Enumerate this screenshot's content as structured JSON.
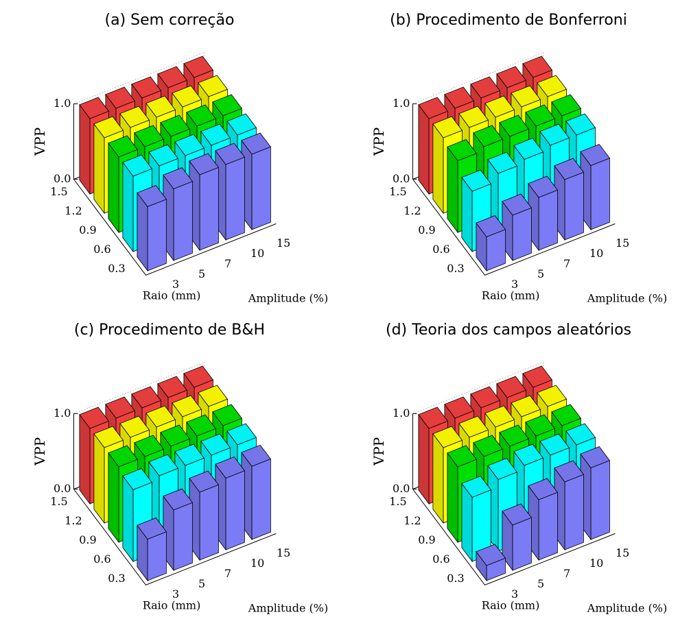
{
  "chart_data": [
    {
      "type": "bar3d",
      "title": "(a) Sem correção",
      "zlabel": "VPP",
      "xlabel": "Raio (mm)",
      "ylabel": "Amplitude (%)",
      "categories": [
        "3",
        "5",
        "7",
        "10",
        "15"
      ],
      "zlim": [
        0,
        1
      ],
      "zticks": [
        {
          "value": 0,
          "label": "0.0"
        },
        {
          "value": 1,
          "label": "1.0"
        }
      ],
      "series": [
        {
          "name": "0.3",
          "color": "#7b7bf5",
          "values": [
            0.85,
            0.95,
            1.0,
            1.0,
            1.0
          ]
        },
        {
          "name": "0.6",
          "color": "#00ffff",
          "values": [
            1.0,
            1.0,
            1.0,
            1.0,
            1.0
          ]
        },
        {
          "name": "0.9",
          "color": "#00e000",
          "values": [
            1.0,
            1.0,
            1.0,
            1.0,
            1.0
          ]
        },
        {
          "name": "1.2",
          "color": "#ffff00",
          "values": [
            1.0,
            1.0,
            1.0,
            1.0,
            1.0
          ]
        },
        {
          "name": "1.5",
          "color": "#f04040",
          "values": [
            1.0,
            1.0,
            1.0,
            1.0,
            1.0
          ]
        }
      ]
    },
    {
      "type": "bar3d",
      "title": "(b) Procedimento de Bonferroni",
      "zlabel": "VPP",
      "xlabel": "Raio (mm)",
      "ylabel": "Amplitude (%)",
      "categories": [
        "3",
        "5",
        "7",
        "10",
        "15"
      ],
      "zlim": [
        0,
        1
      ],
      "zticks": [
        {
          "value": 0,
          "label": "0.0"
        },
        {
          "value": 1,
          "label": "1.0"
        }
      ],
      "series": [
        {
          "name": "0.3",
          "color": "#7b7bf5",
          "values": [
            0.45,
            0.6,
            0.7,
            0.8,
            0.85
          ]
        },
        {
          "name": "0.6",
          "color": "#00ffff",
          "values": [
            0.8,
            0.9,
            0.95,
            1.0,
            1.0
          ]
        },
        {
          "name": "0.9",
          "color": "#00e000",
          "values": [
            0.95,
            1.0,
            1.0,
            1.0,
            1.0
          ]
        },
        {
          "name": "1.2",
          "color": "#ffff00",
          "values": [
            1.0,
            1.0,
            1.0,
            1.0,
            1.0
          ]
        },
        {
          "name": "1.5",
          "color": "#f04040",
          "values": [
            1.0,
            1.0,
            1.0,
            1.0,
            1.0
          ]
        }
      ]
    },
    {
      "type": "bar3d",
      "title": "(c) Procedimento de B&H",
      "zlabel": "VPP",
      "xlabel": "Raio (mm)",
      "ylabel": "Amplitude (%)",
      "categories": [
        "3",
        "5",
        "7",
        "10",
        "15"
      ],
      "zlim": [
        0,
        1
      ],
      "zticks": [
        {
          "value": 0,
          "label": "0.0"
        },
        {
          "value": 1,
          "label": "1.0"
        }
      ],
      "series": [
        {
          "name": "0.3",
          "color": "#7b7bf5",
          "values": [
            0.55,
            0.8,
            0.9,
            0.95,
            0.97
          ]
        },
        {
          "name": "0.6",
          "color": "#00ffff",
          "values": [
            0.95,
            1.0,
            1.0,
            1.0,
            1.0
          ]
        },
        {
          "name": "0.9",
          "color": "#00e000",
          "values": [
            1.0,
            1.0,
            1.0,
            1.0,
            1.0
          ]
        },
        {
          "name": "1.2",
          "color": "#ffff00",
          "values": [
            1.0,
            1.0,
            1.0,
            1.0,
            1.0
          ]
        },
        {
          "name": "1.5",
          "color": "#f04040",
          "values": [
            1.0,
            1.0,
            1.0,
            1.0,
            1.0
          ]
        }
      ]
    },
    {
      "type": "bar3d",
      "title": "(d) Teoria dos campos aleatórios",
      "zlabel": "VPP",
      "xlabel": "Raio (mm)",
      "ylabel": "Amplitude (%)",
      "categories": [
        "3",
        "5",
        "7",
        "10",
        "15"
      ],
      "zlim": [
        0,
        1
      ],
      "zticks": [
        {
          "value": 0,
          "label": "0.0"
        },
        {
          "value": 1,
          "label": "1.0"
        }
      ],
      "series": [
        {
          "name": "0.3",
          "color": "#7b7bf5",
          "values": [
            0.2,
            0.6,
            0.8,
            0.9,
            0.95
          ]
        },
        {
          "name": "0.6",
          "color": "#00ffff",
          "values": [
            0.85,
            0.95,
            1.0,
            1.0,
            1.0
          ]
        },
        {
          "name": "0.9",
          "color": "#00e000",
          "values": [
            1.0,
            1.0,
            1.0,
            1.0,
            1.0
          ]
        },
        {
          "name": "1.2",
          "color": "#ffff00",
          "values": [
            1.0,
            1.0,
            1.0,
            1.0,
            1.0
          ]
        },
        {
          "name": "1.5",
          "color": "#f04040",
          "values": [
            1.0,
            1.0,
            1.0,
            1.0,
            1.0
          ]
        }
      ]
    }
  ]
}
